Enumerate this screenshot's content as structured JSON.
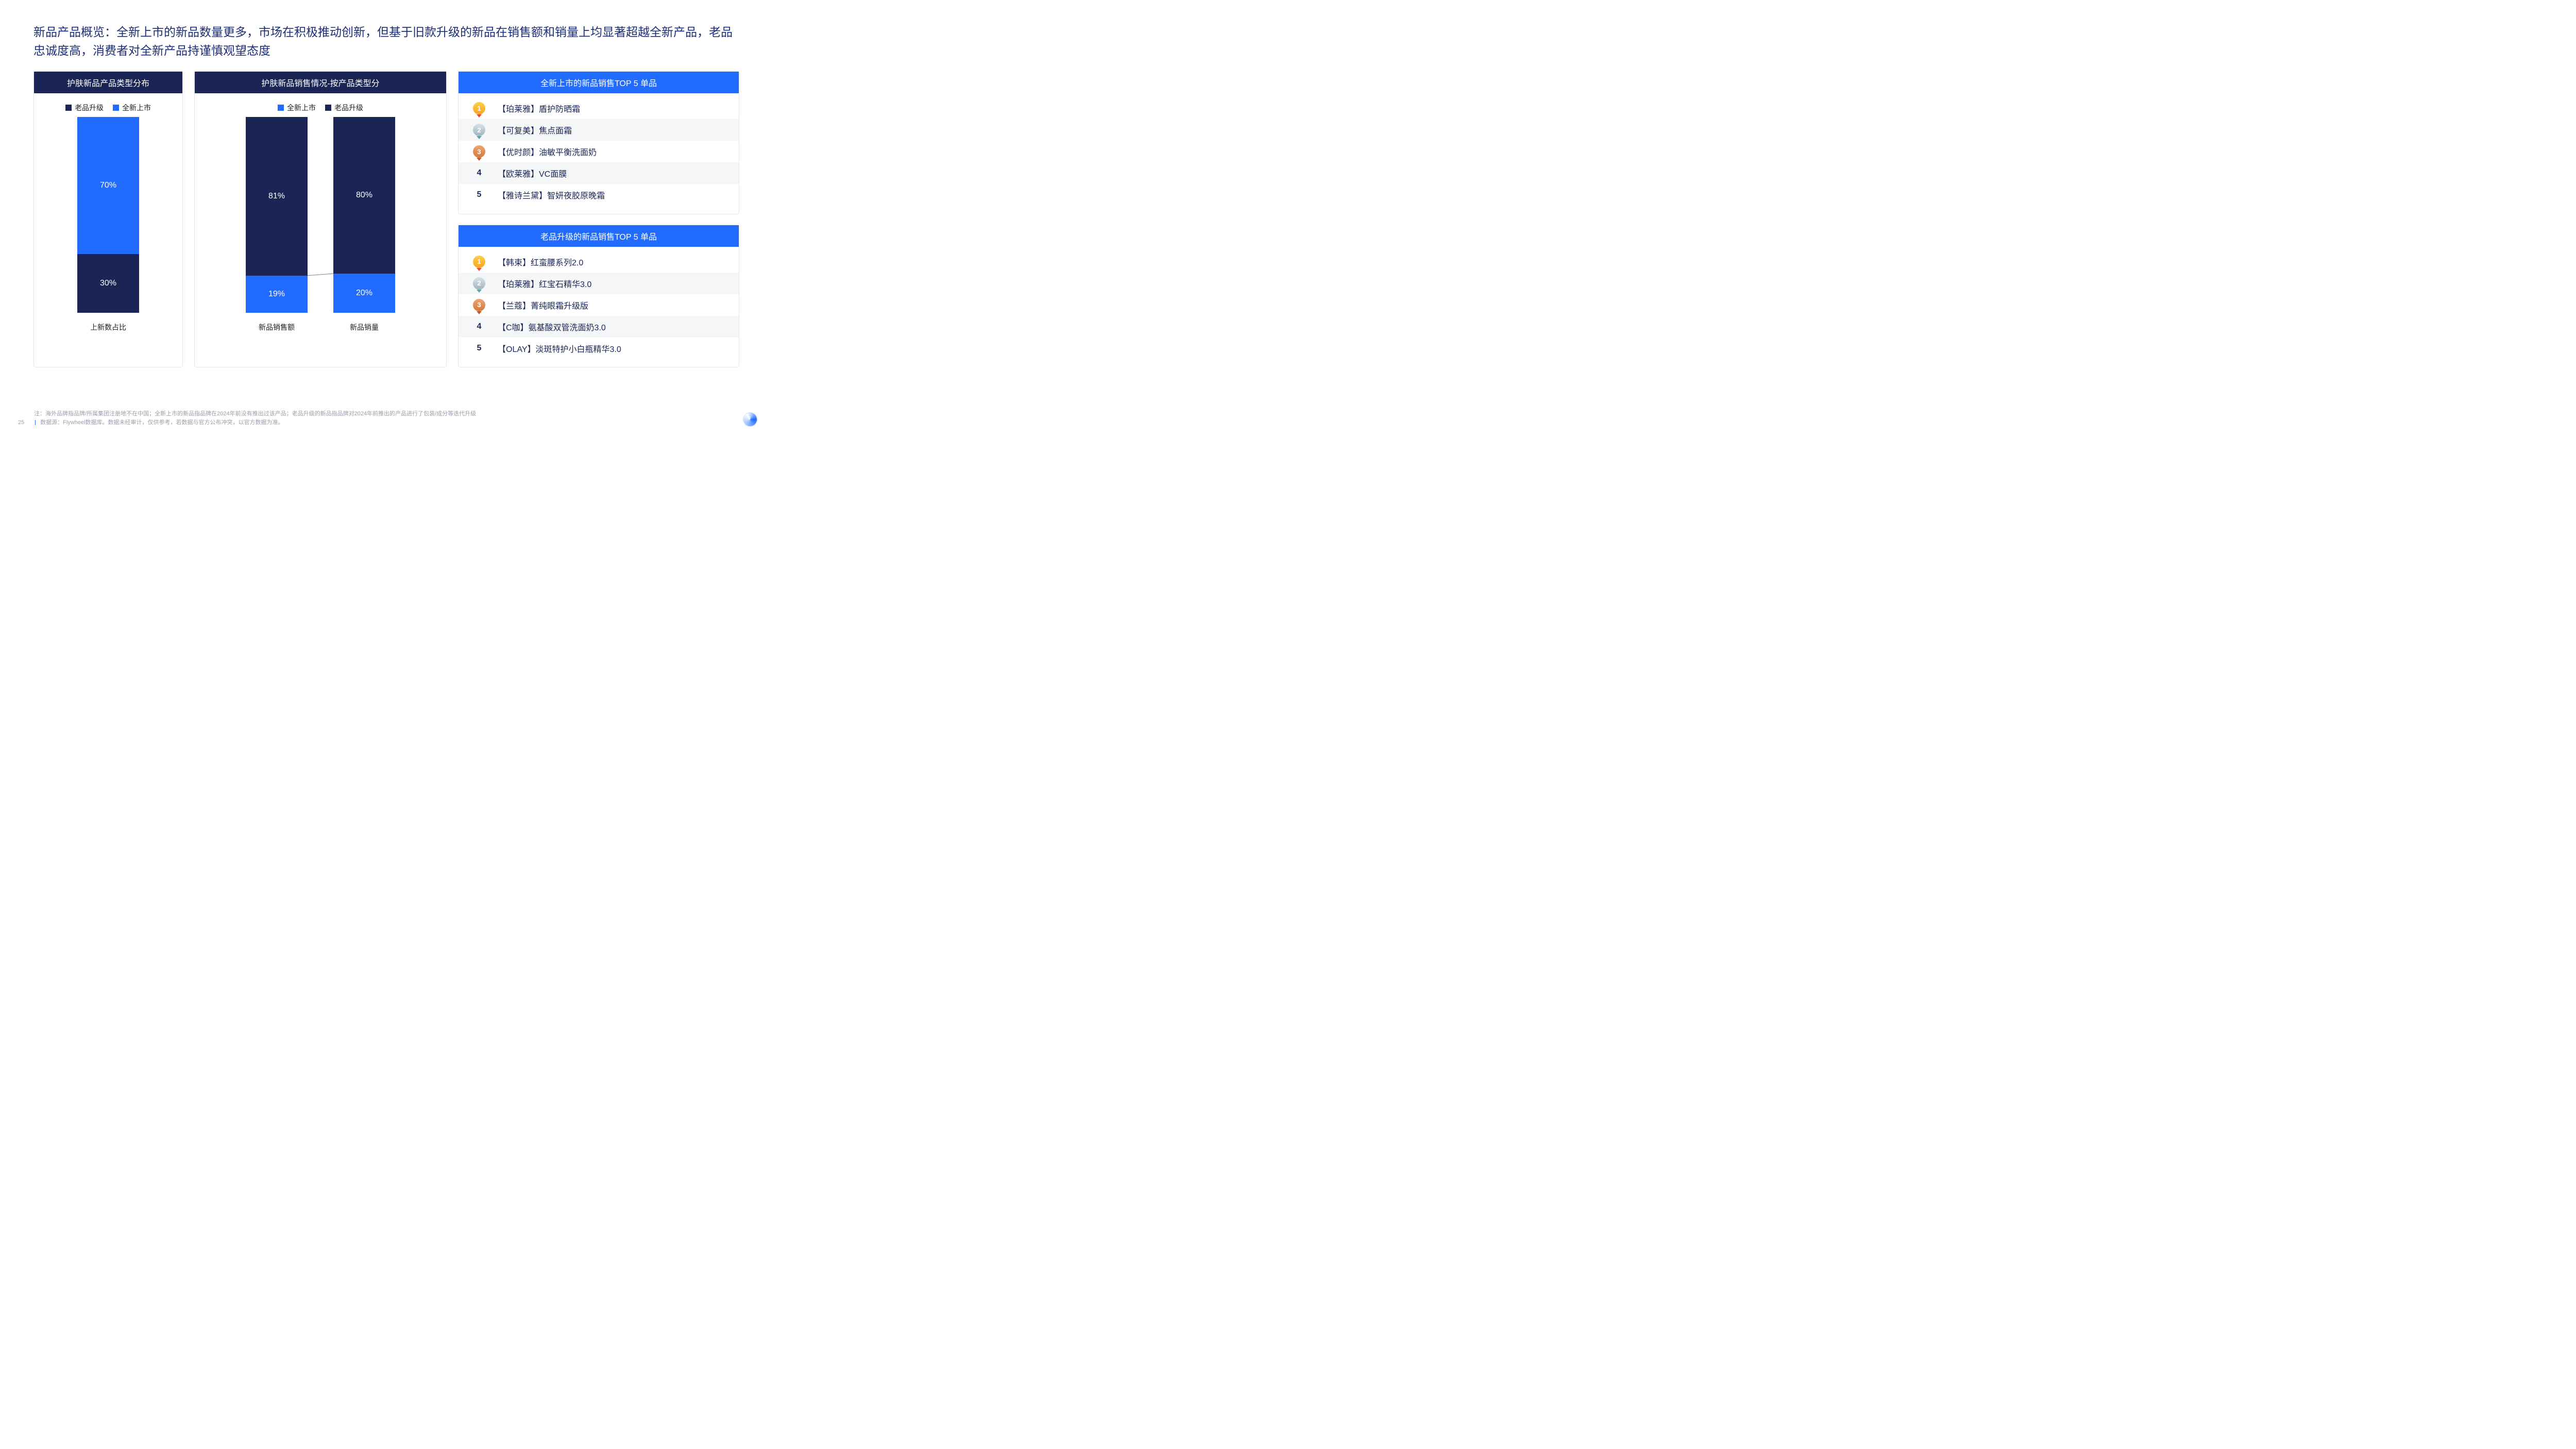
{
  "colors": {
    "navy": "#1a2556",
    "blue": "#226bff",
    "title": "#1c2e7a",
    "text": "#222222",
    "panel_border": "#e5e7eb",
    "footer": "#9aa0ab"
  },
  "title": "新品产品概览：全新上市的新品数量更多，市场在积极推动创新，但基于旧款升级的新品在销售额和销量上均显著超越全新产品，老品忠诚度高，消费者对全新产品持谨慎观望态度",
  "left_chart": {
    "header": "护肤新品产品类型分布",
    "legend": [
      {
        "label": "老品升级",
        "color": "#1a2556"
      },
      {
        "label": "全新上市",
        "color": "#226bff"
      }
    ],
    "category_label": "上新数占比",
    "segments": [
      {
        "label": "70%",
        "value": 70,
        "color": "#226bff"
      },
      {
        "label": "30%",
        "value": 30,
        "color": "#1a2556"
      }
    ]
  },
  "center_chart": {
    "header": "护肤新品销售情况-按产品类型分",
    "legend": [
      {
        "label": "全新上市",
        "color": "#226bff"
      },
      {
        "label": "老品升级",
        "color": "#1a2556"
      }
    ],
    "bars": [
      {
        "category": "新品销售额",
        "segments": [
          {
            "label": "81%",
            "value": 81,
            "color": "#1a2556"
          },
          {
            "label": "19%",
            "value": 19,
            "color": "#226bff"
          }
        ]
      },
      {
        "category": "新品销量",
        "segments": [
          {
            "label": "80%",
            "value": 80,
            "color": "#1a2556"
          },
          {
            "label": "20%",
            "value": 20,
            "color": "#226bff"
          }
        ]
      }
    ]
  },
  "top_new": {
    "header": "全新上市的新品销售TOP 5 单品",
    "items": [
      "【珀莱雅】盾护防晒霜",
      "【可复美】焦点面霜",
      "【优时颜】油敏平衡洗面奶",
      "【欧莱雅】VC面膜",
      "【雅诗兰黛】智妍夜胶原晚霜"
    ]
  },
  "top_upgrade": {
    "header": "老品升级的新品销售TOP 5 单品",
    "items": [
      "【韩束】红蛮腰系列2.0",
      "【珀莱雅】红宝石精华3.0",
      "【兰蔻】菁纯眼霜升级版",
      "【C咖】氨基酸双管洗面奶3.0",
      "【OLAY】淡斑特护小白瓶精华3.0"
    ]
  },
  "footer": {
    "page": "25",
    "note": "注：海外品牌指品牌/所属集团注册地不在中国；全新上市的新品指品牌在2024年前没有推出过该产品；老品升级的新品指品牌对2024年前推出的产品进行了包装/成分等迭代升级",
    "source": "数据源：Flywheel数据库。数据未经审计，仅供参考，若数据与官方公布冲突，以官方数据为准。"
  }
}
